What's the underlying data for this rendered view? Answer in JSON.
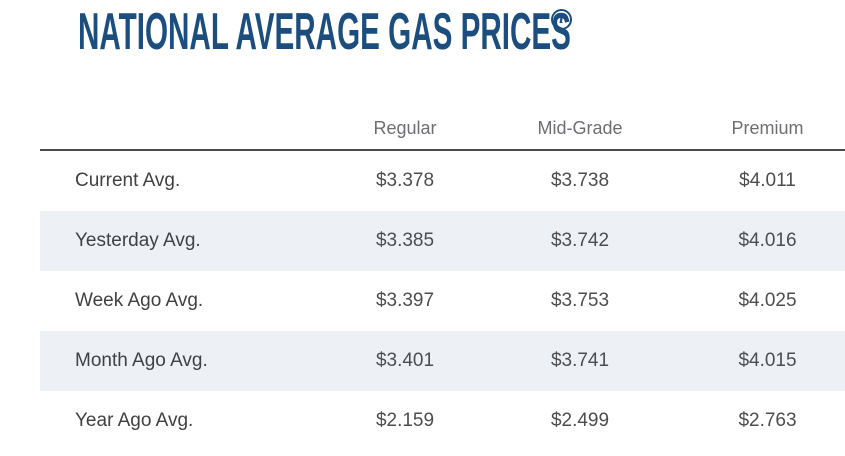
{
  "header": {
    "title": "NATIONAL AVERAGE GAS PRICES",
    "info_icon_glyph": "i"
  },
  "table": {
    "columns": [
      "Regular",
      "Mid-Grade",
      "Premium"
    ],
    "rows": [
      {
        "label": "Current Avg.",
        "values": [
          "$3.378",
          "$3.738",
          "$4.011"
        ]
      },
      {
        "label": "Yesterday Avg.",
        "values": [
          "$3.385",
          "$3.742",
          "$4.016"
        ]
      },
      {
        "label": "Week Ago Avg.",
        "values": [
          "$3.397",
          "$3.753",
          "$4.025"
        ]
      },
      {
        "label": "Month Ago Avg.",
        "values": [
          "$3.401",
          "$3.741",
          "$4.015"
        ]
      },
      {
        "label": "Year Ago Avg.",
        "values": [
          "$2.159",
          "$2.499",
          "$2.763"
        ]
      }
    ]
  },
  "colors": {
    "title": "#1b4e7e",
    "header_text": "#6d6e71",
    "cell_text": "#4d4d4f",
    "stripe": "#edf1f6",
    "header_divider": "#4a4a4c"
  },
  "chart_data": {
    "type": "table",
    "title": "NATIONAL AVERAGE GAS PRICES",
    "columns": [
      "",
      "Regular",
      "Mid-Grade",
      "Premium"
    ],
    "rows": [
      [
        "Current Avg.",
        "$3.378",
        "$3.738",
        "$4.011"
      ],
      [
        "Yesterday Avg.",
        "$3.385",
        "$3.742",
        "$4.016"
      ],
      [
        "Week Ago Avg.",
        "$3.397",
        "$3.753",
        "$4.025"
      ],
      [
        "Month Ago Avg.",
        "$3.401",
        "$3.741",
        "$4.015"
      ],
      [
        "Year Ago Avg.",
        "$2.159",
        "$2.499",
        "$2.763"
      ]
    ],
    "values_unit": "USD per gallon",
    "layout": "alternating row stripes, price columns center-aligned"
  }
}
